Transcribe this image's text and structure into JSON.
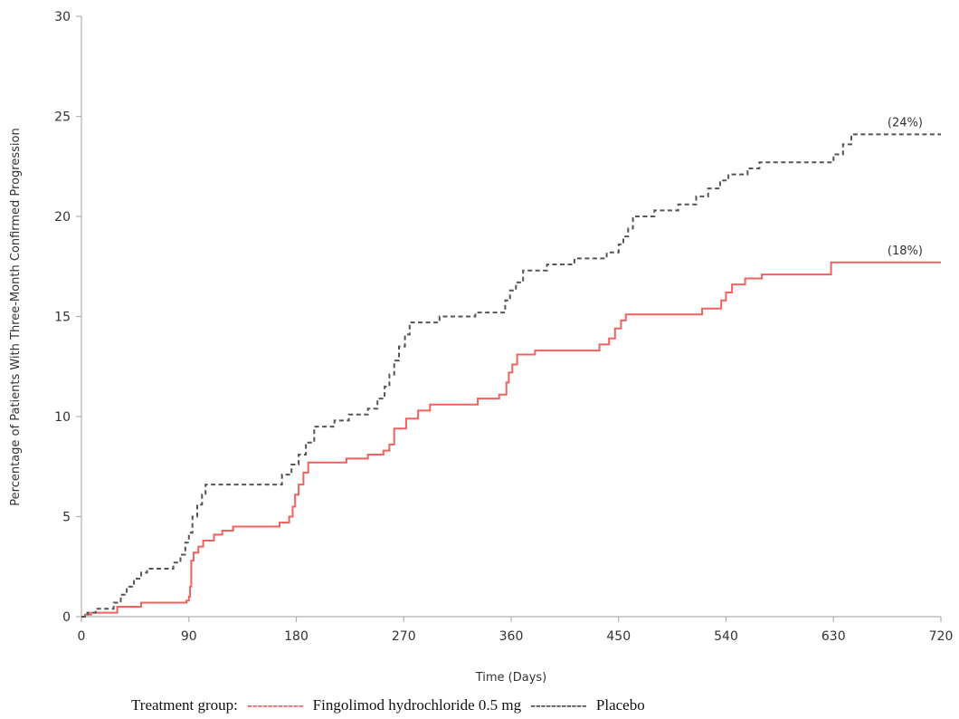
{
  "chart_data": {
    "type": "line",
    "title": "",
    "xlabel": "Time (Days)",
    "ylabel": "Percentage of Patients With Three-Month Confirmed Progression",
    "xlim": [
      0,
      720
    ],
    "ylim": [
      0,
      30
    ],
    "xticks": [
      "0",
      "90",
      "180",
      "270",
      "360",
      "450",
      "540",
      "630",
      "720"
    ],
    "yticks": [
      "0",
      "5",
      "10",
      "15",
      "20",
      "25",
      "30"
    ],
    "grid": false,
    "legend": {
      "placement": "bottom",
      "prefix": "Treatment group:",
      "entries": [
        {
          "dash": "-----------",
          "label": "Fingolimod hydrochloride 0.5 mg"
        },
        {
          "dash": "-----------",
          "label": "Placebo"
        }
      ]
    },
    "series": [
      {
        "name": "Fingolimod hydrochloride 0.5 mg",
        "color": "#f26060",
        "dashed": false,
        "end_label": "(18%)",
        "step": true,
        "points": [
          [
            0,
            0
          ],
          [
            3,
            0.1
          ],
          [
            8,
            0.2
          ],
          [
            30,
            0.5
          ],
          [
            50,
            0.7
          ],
          [
            88,
            0.8
          ],
          [
            90,
            1.0
          ],
          [
            91,
            1.5
          ],
          [
            92,
            2.8
          ],
          [
            94,
            3.2
          ],
          [
            98,
            3.5
          ],
          [
            102,
            3.8
          ],
          [
            111,
            4.1
          ],
          [
            118,
            4.3
          ],
          [
            127,
            4.5
          ],
          [
            166,
            4.7
          ],
          [
            174,
            5.0
          ],
          [
            177,
            5.5
          ],
          [
            179,
            6.1
          ],
          [
            182,
            6.6
          ],
          [
            186,
            7.2
          ],
          [
            190,
            7.7
          ],
          [
            222,
            7.9
          ],
          [
            240,
            8.1
          ],
          [
            253,
            8.3
          ],
          [
            258,
            8.6
          ],
          [
            262,
            9.4
          ],
          [
            272,
            9.9
          ],
          [
            282,
            10.3
          ],
          [
            292,
            10.6
          ],
          [
            332,
            10.9
          ],
          [
            350,
            11.1
          ],
          [
            356,
            11.7
          ],
          [
            358,
            12.2
          ],
          [
            361,
            12.6
          ],
          [
            365,
            13.1
          ],
          [
            380,
            13.3
          ],
          [
            434,
            13.6
          ],
          [
            442,
            13.9
          ],
          [
            447,
            14.4
          ],
          [
            452,
            14.8
          ],
          [
            456,
            15.1
          ],
          [
            520,
            15.4
          ],
          [
            536,
            15.8
          ],
          [
            540,
            16.2
          ],
          [
            545,
            16.6
          ],
          [
            556,
            16.9
          ],
          [
            570,
            17.1
          ],
          [
            628,
            17.7
          ],
          [
            720,
            17.7
          ]
        ]
      },
      {
        "name": "Placebo",
        "color": "#555555",
        "dashed": true,
        "end_label": "(24%)",
        "step": true,
        "points": [
          [
            0,
            0
          ],
          [
            5,
            0.2
          ],
          [
            12,
            0.4
          ],
          [
            27,
            0.7
          ],
          [
            33,
            1.1
          ],
          [
            38,
            1.5
          ],
          [
            44,
            1.9
          ],
          [
            50,
            2.2
          ],
          [
            55,
            2.4
          ],
          [
            77,
            2.7
          ],
          [
            83,
            3.1
          ],
          [
            87,
            3.7
          ],
          [
            90,
            4.2
          ],
          [
            93,
            5.0
          ],
          [
            97,
            5.6
          ],
          [
            101,
            6.1
          ],
          [
            104,
            6.6
          ],
          [
            168,
            7.1
          ],
          [
            176,
            7.6
          ],
          [
            182,
            8.1
          ],
          [
            188,
            8.7
          ],
          [
            195,
            9.5
          ],
          [
            212,
            9.8
          ],
          [
            224,
            10.1
          ],
          [
            240,
            10.4
          ],
          [
            248,
            10.9
          ],
          [
            254,
            11.5
          ],
          [
            258,
            12.1
          ],
          [
            262,
            12.8
          ],
          [
            266,
            13.5
          ],
          [
            271,
            14.1
          ],
          [
            275,
            14.7
          ],
          [
            300,
            15.0
          ],
          [
            330,
            15.2
          ],
          [
            355,
            15.8
          ],
          [
            359,
            16.3
          ],
          [
            364,
            16.7
          ],
          [
            370,
            17.3
          ],
          [
            390,
            17.6
          ],
          [
            413,
            17.9
          ],
          [
            440,
            18.2
          ],
          [
            450,
            18.6
          ],
          [
            454,
            19.0
          ],
          [
            458,
            19.4
          ],
          [
            462,
            20.0
          ],
          [
            480,
            20.3
          ],
          [
            500,
            20.6
          ],
          [
            515,
            21.0
          ],
          [
            525,
            21.4
          ],
          [
            535,
            21.8
          ],
          [
            542,
            22.1
          ],
          [
            558,
            22.4
          ],
          [
            568,
            22.7
          ],
          [
            630,
            23.1
          ],
          [
            638,
            23.6
          ],
          [
            645,
            24.1
          ],
          [
            720,
            24.1
          ]
        ]
      }
    ]
  }
}
